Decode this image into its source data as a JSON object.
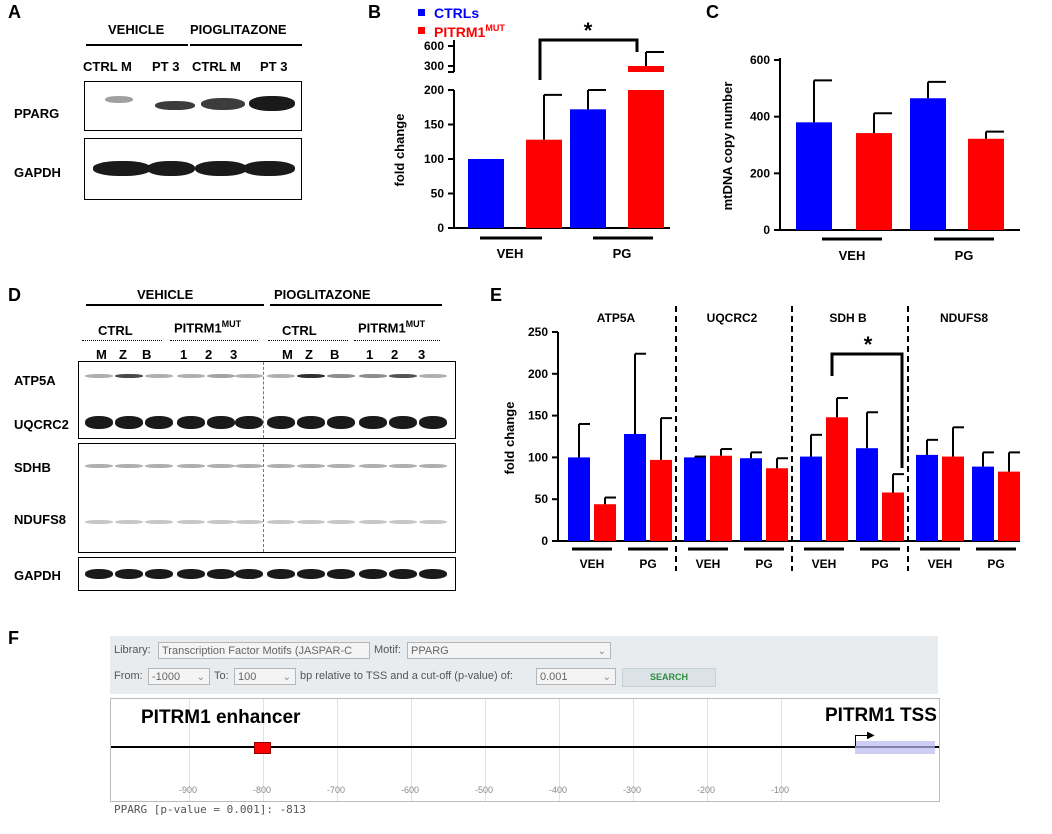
{
  "panels": {
    "a": "A",
    "b": "B",
    "c": "C",
    "d": "D",
    "e": "E",
    "f": "F"
  },
  "panelA": {
    "vehicle": "VEHICLE",
    "pioglitazone": "PIOGLITAZONE",
    "lanes": [
      "CTRL M",
      "PT 3",
      "CTRL M",
      "PT 3"
    ],
    "rows": [
      "PPARG",
      "GAPDH"
    ]
  },
  "panelD": {
    "vehicle": "VEHICLE",
    "pioglitazone": "PIOGLITAZONE",
    "ctrl": "CTRL",
    "mut": "PITRM1",
    "mut_sup": "MUT",
    "lanes": [
      "M",
      "Z",
      "B",
      "1",
      "2",
      "3",
      "M",
      "Z",
      "B",
      "1",
      "2",
      "3"
    ],
    "rows": [
      "ATP5A",
      "UQCRC2",
      "SDHB",
      "NDUFS8",
      "GAPDH"
    ]
  },
  "colors": {
    "ctrl": "#0000ff",
    "mut": "#ff0000"
  },
  "chart_data": [
    {
      "id": "B",
      "type": "bar",
      "ylabel": "fold change",
      "legend": [
        {
          "name": "CTRLs",
          "color": "#0000ff"
        },
        {
          "name": "PITRM1",
          "sup": "MUT",
          "color": "#ff0000"
        }
      ],
      "groups": [
        "VEH",
        "PG"
      ],
      "series": [
        {
          "name": "CTRLs",
          "values": [
            100,
            172
          ],
          "err": [
            0,
            28
          ]
        },
        {
          "name": "PITRM1MUT",
          "values": [
            128,
            300
          ],
          "err": [
            65,
            300
          ]
        }
      ],
      "yticks_lower": [
        "0",
        "50",
        "100",
        "150",
        "200"
      ],
      "yticks_upper": [
        "300",
        "600"
      ],
      "ylim_lower": [
        0,
        200
      ],
      "ylim_upper": [
        300,
        600
      ],
      "significance": "*"
    },
    {
      "id": "C",
      "type": "bar",
      "ylabel": "mtDNA copy number",
      "groups": [
        "VEH",
        "PG"
      ],
      "series": [
        {
          "name": "CTRLs",
          "values": [
            380,
            465
          ],
          "err": [
            148,
            58
          ]
        },
        {
          "name": "PITRM1MUT",
          "values": [
            342,
            322
          ],
          "err": [
            70,
            25
          ]
        }
      ],
      "yticks": [
        "0",
        "200",
        "400",
        "600"
      ],
      "ylim": [
        0,
        600
      ]
    },
    {
      "id": "E",
      "type": "bar",
      "ylabel": "fold change",
      "sections": [
        {
          "title": "ATP5A",
          "ctrl": [
            100,
            128
          ],
          "ctrl_err": [
            40,
            96
          ],
          "mut": [
            44,
            97
          ],
          "mut_err": [
            8,
            50
          ]
        },
        {
          "title": "UQCRC2",
          "ctrl": [
            100,
            99
          ],
          "ctrl_err": [
            1,
            7
          ],
          "mut": [
            102,
            87
          ],
          "mut_err": [
            8,
            12
          ]
        },
        {
          "title": "SDH B",
          "ctrl": [
            101,
            111
          ],
          "ctrl_err": [
            26,
            43
          ],
          "mut": [
            148,
            58
          ],
          "mut_err": [
            23,
            22
          ]
        },
        {
          "title": "NDUFS8",
          "ctrl": [
            103,
            89
          ],
          "ctrl_err": [
            18,
            17
          ],
          "mut": [
            101,
            83
          ],
          "mut_err": [
            35,
            23
          ]
        }
      ],
      "groups": [
        "VEH",
        "PG"
      ],
      "yticks": [
        "0",
        "50",
        "100",
        "150",
        "200",
        "250"
      ],
      "ylim": [
        0,
        250
      ],
      "significance": "*"
    }
  ],
  "panelF": {
    "library_label": "Library:",
    "library_value": "Transcription Factor Motifs (JASPAR-C",
    "motif_label": "Motif:",
    "motif_value": "PPARG",
    "from_label": "From:",
    "from_value": "-1000",
    "to_label": "To:",
    "to_value": "100",
    "bp_text": "bp relative to TSS and a cut-off (p-value) of:",
    "cutoff_value": "0.001",
    "search_label": "SEARCH",
    "enhancer_label": "PITRM1 enhancer",
    "tss_label": "PITRM1 TSS",
    "ticks": [
      "-900",
      "-800",
      "-700",
      "-600",
      "-500",
      "-400",
      "-300",
      "-200",
      "-100"
    ],
    "result": "PPARG [p-value = 0.001]: -813"
  }
}
